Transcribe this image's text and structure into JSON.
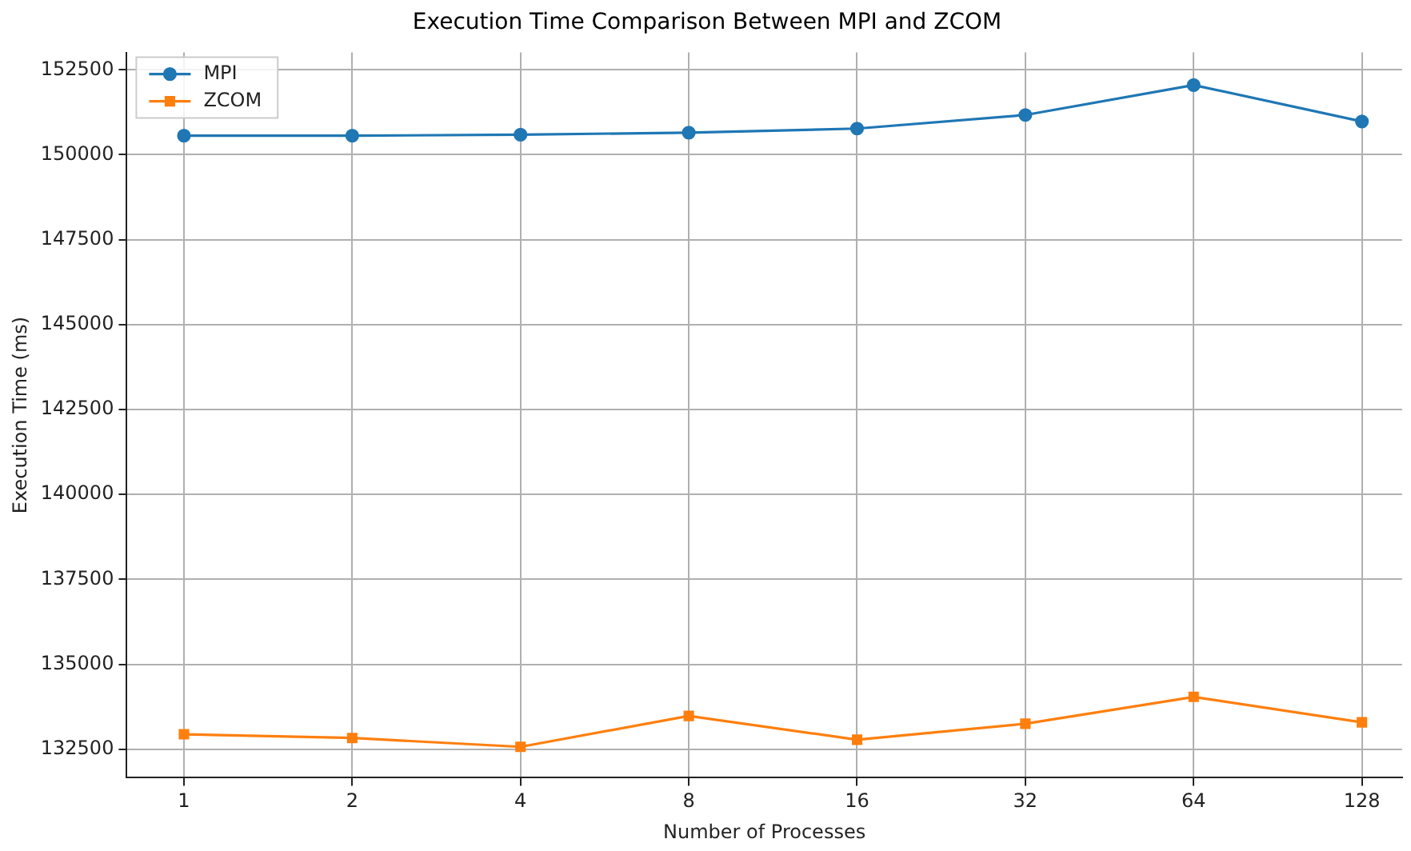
{
  "chart_data": {
    "type": "line",
    "title": "Execution Time Comparison Between MPI and ZCOM",
    "xlabel": "Number of Processes",
    "ylabel": "Execution Time (ms)",
    "x": [
      1,
      2,
      4,
      8,
      16,
      32,
      64,
      128
    ],
    "series": [
      {
        "name": "MPI",
        "color": "#1f77b4",
        "marker": "circle",
        "values": [
          150560,
          150560,
          150590,
          150650,
          150770,
          151170,
          152050,
          150980
        ]
      },
      {
        "name": "ZCOM",
        "color": "#ff7f0e",
        "marker": "square",
        "values": [
          132940,
          132830,
          132570,
          133480,
          132780,
          133250,
          134040,
          133290
        ]
      }
    ],
    "log": "x",
    "xlim": [
      0.79,
      151
    ],
    "xticks": [
      1,
      2,
      4,
      8,
      16,
      32,
      64,
      128
    ],
    "ylim": [
      131660,
      153010
    ],
    "yticks": [
      132500,
      135000,
      137500,
      140000,
      142500,
      145000,
      147500,
      150000,
      152500
    ],
    "grid": true,
    "legend": "top left",
    "line_style": "solid"
  }
}
